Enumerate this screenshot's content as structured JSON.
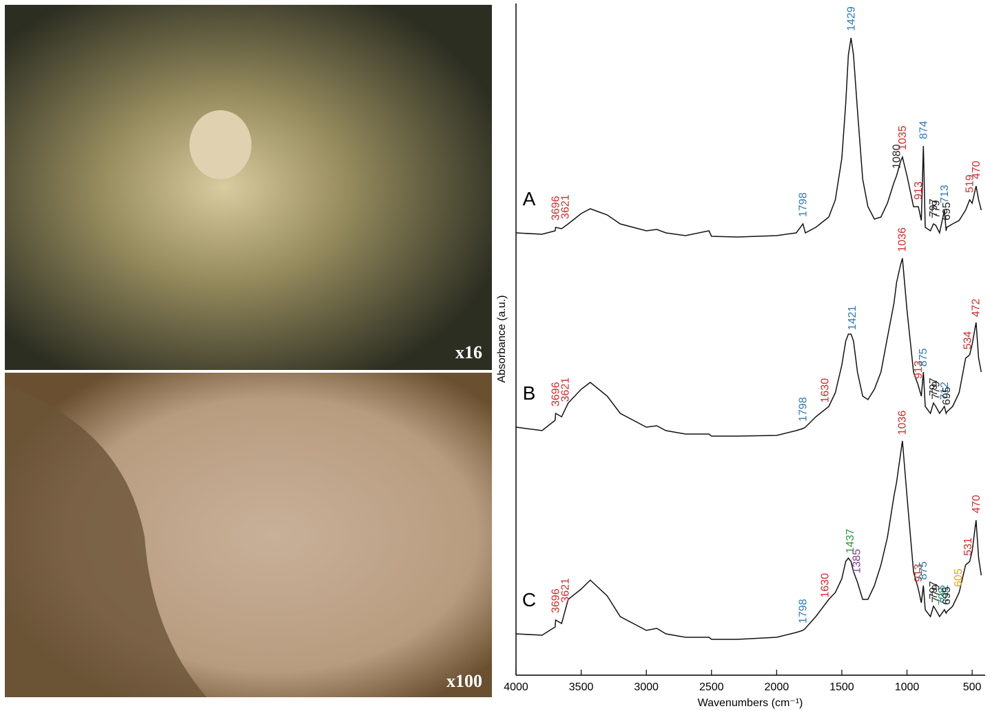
{
  "images": [
    {
      "label": "x16"
    },
    {
      "label": "x100"
    }
  ],
  "chart_data": {
    "type": "line",
    "xlabel": "Wavenumbers (cm⁻¹)",
    "ylabel": "Absorbance (a.u.)",
    "xlim": [
      4000,
      400
    ],
    "xticks": [
      4000,
      3500,
      3000,
      2500,
      2000,
      1500,
      1000,
      500
    ],
    "ylim": [
      0,
      975
    ],
    "x": [
      4000,
      3800,
      3700,
      3696,
      3650,
      3600,
      3500,
      3430,
      3300,
      3200,
      3000,
      2920,
      2850,
      2700,
      2520,
      2500,
      2300,
      2000,
      1850,
      1798,
      1780,
      1700,
      1600,
      1550,
      1500,
      1470,
      1450,
      1429,
      1410,
      1380,
      1340,
      1300,
      1250,
      1200,
      1150,
      1100,
      1080,
      1050,
      1035,
      1000,
      950,
      913,
      890,
      874,
      860,
      820,
      797,
      779,
      750,
      713,
      700,
      695,
      650,
      600,
      550,
      519,
      500,
      470,
      450,
      430
    ],
    "series": [
      {
        "name": "A",
        "color": "#111111",
        "values": [
          642,
          640,
          645,
          650,
          648,
          655,
          670,
          677,
          668,
          655,
          645,
          647,
          642,
          638,
          645,
          637,
          636,
          638,
          642,
          655,
          642,
          650,
          665,
          690,
          750,
          830,
          900,
          925,
          900,
          820,
          720,
          680,
          662,
          665,
          685,
          715,
          725,
          745,
          752,
          725,
          680,
          680,
          660,
          768,
          650,
          645,
          655,
          653,
          642,
          675,
          645,
          650,
          655,
          660,
          675,
          690,
          685,
          710,
          690,
          675
        ],
        "annotations": [
          {
            "text": "3696",
            "color": "#d42a2a"
          },
          {
            "text": "3621",
            "color": "#d42a2a"
          },
          {
            "text": "1798",
            "color": "#2a7ab8"
          },
          {
            "text": "1429",
            "color": "#2a7ab8"
          },
          {
            "text": "1080",
            "color": "#222222"
          },
          {
            "text": "1035",
            "color": "#d42a2a"
          },
          {
            "text": "913",
            "color": "#d42a2a"
          },
          {
            "text": "874",
            "color": "#2a7ab8"
          },
          {
            "text": "797",
            "color": "#222222"
          },
          {
            "text": "779",
            "color": "#222222"
          },
          {
            "text": "713",
            "color": "#2a7ab8"
          },
          {
            "text": "695",
            "color": "#222222"
          },
          {
            "text": "519",
            "color": "#d42a2a"
          },
          {
            "text": "470",
            "color": "#d42a2a"
          }
        ]
      },
      {
        "name": "B",
        "color": "#111111",
        "values": [
          360,
          355,
          370,
          380,
          375,
          395,
          415,
          425,
          405,
          380,
          360,
          362,
          355,
          350,
          350,
          347,
          347,
          348,
          355,
          358,
          360,
          375,
          390,
          410,
          450,
          485,
          495,
          495,
          485,
          440,
          405,
          400,
          415,
          440,
          490,
          540,
          570,
          595,
          605,
          530,
          440,
          420,
          405,
          440,
          390,
          380,
          395,
          390,
          380,
          390,
          380,
          382,
          390,
          410,
          460,
          465,
          480,
          512,
          460,
          440
        ],
        "annotations": [
          {
            "text": "3696",
            "color": "#d42a2a"
          },
          {
            "text": "3621",
            "color": "#d42a2a"
          },
          {
            "text": "1798",
            "color": "#2a7ab8"
          },
          {
            "text": "1630",
            "color": "#d42a2a"
          },
          {
            "text": "1421",
            "color": "#2a7ab8"
          },
          {
            "text": "1036",
            "color": "#d42a2a"
          },
          {
            "text": "913",
            "color": "#d42a2a"
          },
          {
            "text": "875",
            "color": "#2a7ab8"
          },
          {
            "text": "797",
            "color": "#222222"
          },
          {
            "text": "779",
            "color": "#222222"
          },
          {
            "text": "712",
            "color": "#2a7ab8"
          },
          {
            "text": "695",
            "color": "#222222"
          },
          {
            "text": "534",
            "color": "#d42a2a"
          },
          {
            "text": "472",
            "color": "#d42a2a"
          }
        ]
      },
      {
        "name": "C",
        "color": "#111111",
        "values": [
          60,
          58,
          70,
          80,
          75,
          110,
          125,
          138,
          115,
          85,
          65,
          68,
          60,
          55,
          55,
          52,
          52,
          55,
          62,
          65,
          68,
          85,
          110,
          120,
          140,
          165,
          170,
          165,
          150,
          135,
          110,
          110,
          130,
          160,
          200,
          260,
          280,
          320,
          340,
          260,
          150,
          125,
          105,
          130,
          95,
          85,
          100,
          95,
          85,
          95,
          90,
          92,
          100,
          120,
          160,
          165,
          180,
          225,
          170,
          145
        ],
        "annotations": [
          {
            "text": "3696",
            "color": "#d42a2a"
          },
          {
            "text": "3621",
            "color": "#d42a2a"
          },
          {
            "text": "1798",
            "color": "#2a7ab8"
          },
          {
            "text": "1630",
            "color": "#d42a2a"
          },
          {
            "text": "1437",
            "color": "#2a9a3a"
          },
          {
            "text": "1385",
            "color": "#7a3a9a"
          },
          {
            "text": "1036",
            "color": "#d42a2a"
          },
          {
            "text": "913",
            "color": "#d42a2a"
          },
          {
            "text": "875",
            "color": "#2a7ab8"
          },
          {
            "text": "797",
            "color": "#222222"
          },
          {
            "text": "779",
            "color": "#222222"
          },
          {
            "text": "728",
            "color": "#2a9a3a"
          },
          {
            "text": "712",
            "color": "#2a7ab8"
          },
          {
            "text": "695",
            "color": "#222222"
          },
          {
            "text": "605",
            "color": "#e8a020"
          },
          {
            "text": "531",
            "color": "#d42a2a"
          },
          {
            "text": "470",
            "color": "#d42a2a"
          }
        ]
      }
    ]
  }
}
